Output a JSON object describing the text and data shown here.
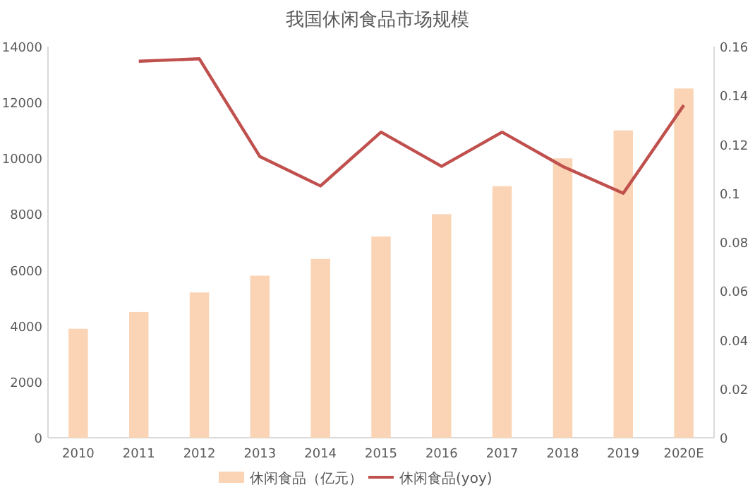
{
  "chart_data": {
    "type": "bar",
    "title": "我国休闲食品市场规模",
    "categories": [
      "2010",
      "2011",
      "2012",
      "2013",
      "2014",
      "2015",
      "2016",
      "2017",
      "2018",
      "2019",
      "2020E"
    ],
    "series": [
      {
        "name": "休闲食品（亿元）",
        "color": "#fad4b4",
        "values": [
          3900,
          4500,
          5200,
          5800,
          6400,
          7200,
          8000,
          9000,
          10000,
          11000,
          12500
        ]
      },
      {
        "name": "休闲食品(yoy)",
        "type": "line",
        "axis": "y2",
        "color": "#c0504d",
        "values": [
          null,
          0.154,
          0.155,
          0.115,
          0.103,
          0.125,
          0.111,
          0.125,
          0.111,
          0.1,
          0.136
        ]
      }
    ],
    "ylim": [
      0,
      14000
    ],
    "yticks": [
      0,
      2000,
      4000,
      6000,
      8000,
      10000,
      12000,
      14000
    ],
    "y2lim": [
      0,
      0.16
    ],
    "y2ticks": [
      0,
      0.02,
      0.04,
      0.06,
      0.08,
      0.1,
      0.12,
      0.14,
      0.16
    ],
    "grid": false,
    "legend": "bottom",
    "marker": "none",
    "line_style": "solid"
  }
}
